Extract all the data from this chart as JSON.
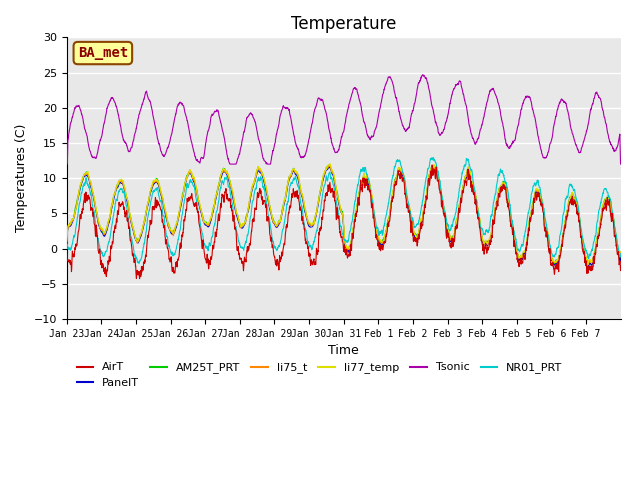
{
  "title": "Temperature",
  "xlabel": "Time",
  "ylabel": "Temperatures (C)",
  "ylim": [
    -10,
    30
  ],
  "annotation_text": "BA_met",
  "annotation_color": "#8B0000",
  "annotation_bg": "#FFFF99",
  "annotation_border": "#8B4500",
  "series_colors": {
    "AirT": "#CC0000",
    "PanelT": "#0000CC",
    "AM25T_PRT": "#00CC00",
    "li75_t": "#FF8800",
    "li77_temp": "#DDDD00",
    "Tsonic": "#AA00AA",
    "NR01_PRT": "#00CCCC"
  },
  "x_tick_labels": [
    "Jan 23",
    "Jan 24",
    "Jan 25",
    "Jan 26",
    "Jan 27",
    "Jan 28",
    "Jan 29",
    "Jan 30",
    "Jan 31",
    "Feb 1",
    "Feb 2",
    "Feb 3",
    "Feb 4",
    "Feb 5",
    "Feb 6",
    "Feb 7"
  ],
  "background_color": "#E8E8E8",
  "grid_color": "white",
  "title_fontsize": 12
}
